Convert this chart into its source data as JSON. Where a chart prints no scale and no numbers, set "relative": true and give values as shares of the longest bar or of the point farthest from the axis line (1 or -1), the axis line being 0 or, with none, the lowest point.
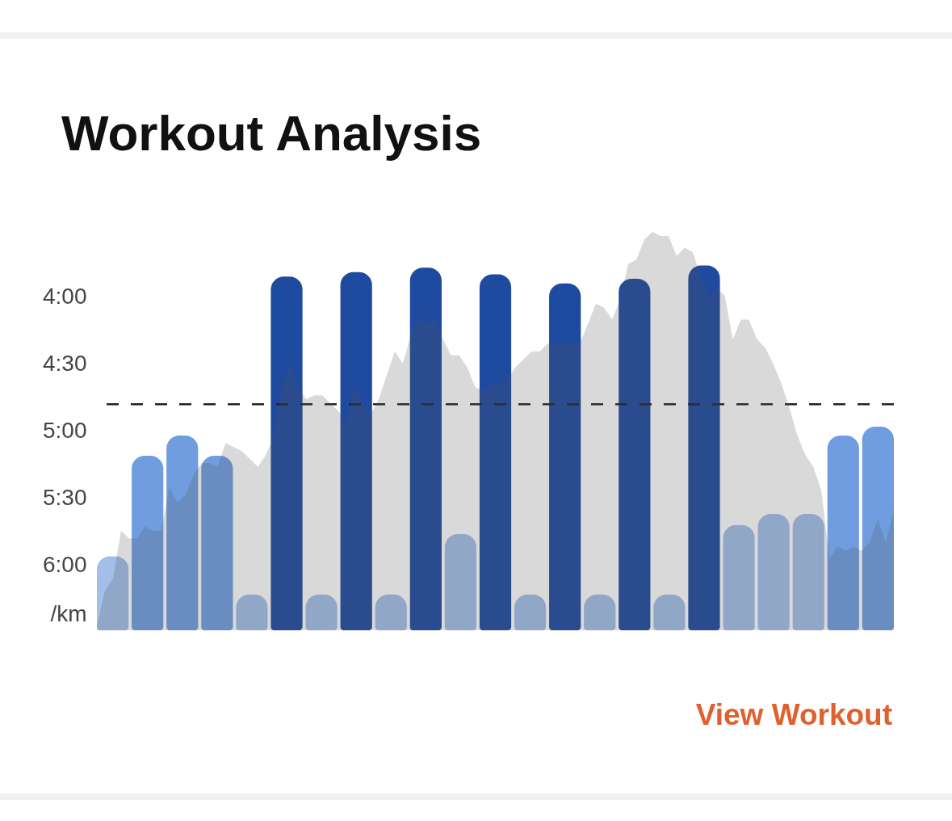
{
  "chart_data": [
    {
      "type": "bar",
      "title": "Workout Analysis",
      "ylabel": "/km",
      "annotations": [
        "View Workout"
      ],
      "categories": [
        null,
        null,
        null,
        null,
        null,
        null,
        null,
        null,
        null,
        null,
        null,
        null,
        null,
        null,
        null,
        null,
        null,
        null,
        null,
        null,
        null,
        null,
        null
      ],
      "base": [
        389,
        389,
        389,
        389,
        389,
        389,
        389,
        389,
        389,
        389,
        389,
        389,
        389,
        389,
        389,
        389,
        389,
        389,
        389,
        389,
        389,
        389,
        389
      ],
      "values": [
        -33,
        -78,
        -87,
        -78,
        -16,
        -158,
        -16,
        -160,
        -16,
        -162,
        -43,
        -159,
        -16,
        -155,
        -16,
        -157,
        -16,
        -163,
        -47,
        -52,
        -52,
        -87,
        -91
      ],
      "colors": [
        "#a3bfe9",
        "#6f9ddf",
        "#6f9ddf",
        "#6f9ddf",
        "#a3bfe9",
        "#1e4aa0",
        "#a3bfe9",
        "#1e4aa0",
        "#a3bfe9",
        "#1e4aa0",
        "#a3bfe9",
        "#1e4aa0",
        "#a3bfe9",
        "#1e4aa0",
        "#a3bfe9",
        "#1e4aa0",
        "#a3bfe9",
        "#1e4aa0",
        "#a3bfe9",
        "#a3bfe9",
        "#a3bfe9",
        "#6f9ddf",
        "#6f9ddf"
      ],
      "ylim": [
        389,
        226
      ],
      "yticks": [
        {
          "value": 240,
          "label": "4:00"
        },
        {
          "value": 270,
          "label": "4:30"
        },
        {
          "value": 300,
          "label": "5:00"
        },
        {
          "value": 330,
          "label": "5:30"
        },
        {
          "value": 360,
          "label": "6:00"
        }
      ],
      "ref_lines": [
        {
          "axis": "y",
          "value": 288,
          "color": "#222222",
          "line_style": "dashed"
        }
      ],
      "tick_labels": "y"
    },
    {
      "type": "area",
      "color": "#d9d9d9",
      "relative": true,
      "categories": [
        null,
        null,
        null,
        null,
        null,
        null,
        null,
        null,
        null,
        null,
        null,
        null,
        null,
        null,
        null,
        null,
        null,
        null,
        null,
        null,
        null,
        null,
        null,
        null,
        null,
        null,
        null,
        null,
        null,
        null,
        null,
        null,
        null,
        null,
        null,
        null,
        null,
        null,
        null,
        null,
        null,
        null,
        null,
        null,
        null,
        null,
        null,
        null,
        null,
        null,
        null,
        null,
        null,
        null,
        null,
        null,
        null,
        null,
        null,
        null,
        null,
        null,
        null,
        null,
        null,
        null,
        null,
        null,
        null,
        null,
        null,
        null,
        null,
        null,
        null,
        null,
        null,
        null,
        null,
        null,
        null,
        null,
        null,
        null,
        null,
        null,
        null,
        null,
        null,
        null,
        null,
        null,
        null,
        null,
        null,
        null,
        null,
        null,
        null,
        null
      ],
      "values": [
        0.01,
        0.1,
        0.13,
        0.25,
        0.23,
        0.23,
        0.26,
        0.25,
        0.25,
        0.36,
        0.32,
        0.34,
        0.39,
        0.42,
        0.42,
        0.41,
        0.47,
        0.46,
        0.45,
        0.43,
        0.41,
        0.44,
        0.49,
        0.61,
        0.67,
        0.61,
        0.58,
        0.59,
        0.59,
        0.57,
        0.55,
        0.52,
        0.62,
        0.57,
        0.54,
        0.58,
        0.64,
        0.7,
        0.67,
        0.74,
        0.79,
        0.77,
        0.78,
        0.73,
        0.69,
        0.69,
        0.66,
        0.61,
        0.6,
        0.62,
        0.62,
        0.63,
        0.66,
        0.68,
        0.7,
        0.7,
        0.72,
        0.72,
        0.72,
        0.72,
        0.72,
        0.77,
        0.82,
        0.81,
        0.78,
        0.83,
        0.92,
        0.93,
        0.98,
        1.0,
        0.99,
        0.99,
        0.94,
        0.96,
        0.95,
        0.89,
        0.84,
        0.86,
        0.84,
        0.73,
        0.78,
        0.78,
        0.73,
        0.71,
        0.67,
        0.62,
        0.56,
        0.49,
        0.44,
        0.41,
        0.35,
        0.18,
        0.21,
        0.2,
        0.21,
        0.2,
        0.22,
        0.28,
        0.22,
        0.3
      ]
    }
  ]
}
